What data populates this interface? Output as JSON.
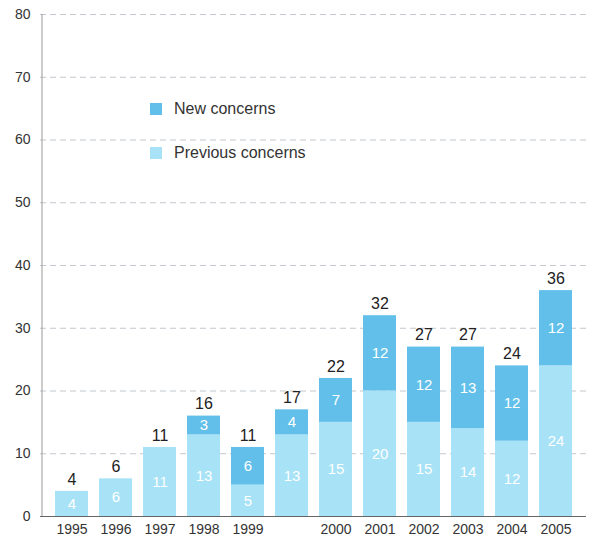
{
  "chart_data": {
    "type": "bar",
    "stacked": true,
    "data_labels": true,
    "grid": true,
    "legend": "top-left",
    "categories": [
      "1995",
      "1996",
      "1997",
      "1998",
      "1999",
      null,
      "2000",
      "2001",
      "2002",
      "2003",
      "2004",
      "2005"
    ],
    "series": [
      {
        "name": "Previous concerns",
        "color": "#a8e2f6",
        "values": [
          4,
          6,
          11,
          13,
          5,
          13,
          15,
          20,
          15,
          14,
          12,
          24
        ]
      },
      {
        "name": "New concerns",
        "color": "#62bfea",
        "values": [
          null,
          null,
          null,
          3,
          6,
          4,
          7,
          12,
          12,
          13,
          12,
          12
        ]
      }
    ],
    "totals": [
      4,
      6,
      11,
      16,
      11,
      17,
      22,
      32,
      27,
      27,
      24,
      36
    ],
    "ylim": [
      0,
      80
    ],
    "yticks": [
      0,
      10,
      20,
      30,
      40,
      50,
      60,
      70,
      80
    ]
  }
}
